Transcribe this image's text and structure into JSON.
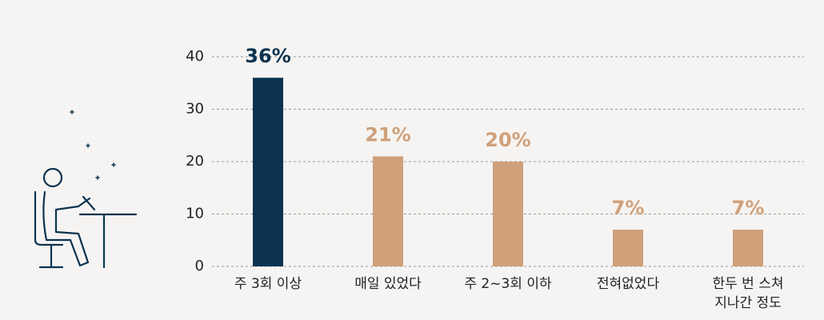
{
  "chart_data": {
    "type": "bar",
    "categories": [
      "주 3회 이상",
      "매일 있었다",
      "주 2~3회 이하",
      "전혀없었다",
      "한두 번 스쳐\n지나간 정도"
    ],
    "values": [
      36,
      21,
      20,
      7,
      7
    ],
    "value_labels": [
      "36%",
      "21%",
      "20%",
      "7%",
      "7%"
    ],
    "colors": [
      "#0b3350",
      "#cfa07a",
      "#cfa07a",
      "#cfa07a",
      "#cfa07a"
    ],
    "ylim": [
      0,
      40
    ],
    "yticks": [
      0,
      10,
      20,
      30,
      40
    ],
    "grid": true
  }
}
